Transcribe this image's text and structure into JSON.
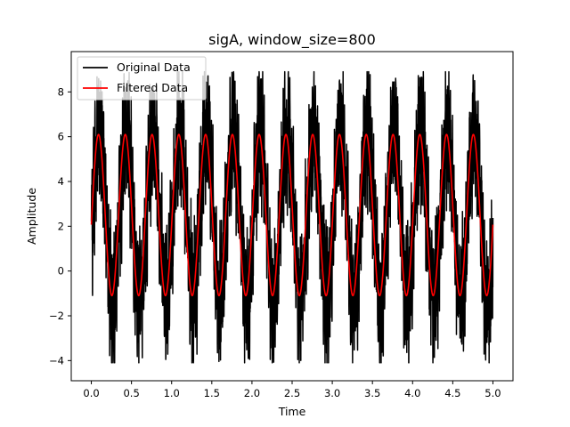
{
  "chart_data": {
    "type": "line",
    "title": "sigA, window_size=800",
    "xlabel": "Time",
    "ylabel": "Amplitude",
    "xlim": [
      -0.25,
      5.25
    ],
    "ylim": [
      -4.9,
      9.8
    ],
    "xticks": [
      0,
      0.5,
      1,
      1.5,
      2,
      2.5,
      3,
      3.5,
      4,
      4.5,
      5
    ],
    "xtick_labels": [
      "0.0",
      "0.5",
      "1.0",
      "1.5",
      "2.0",
      "2.5",
      "3.0",
      "3.5",
      "4.0",
      "4.5",
      "5.0"
    ],
    "yticks": [
      -4,
      -2,
      0,
      2,
      4,
      6,
      8
    ],
    "ytick_labels": [
      "−4",
      "−2",
      "0",
      "2",
      "4",
      "6",
      "8"
    ],
    "grid": false,
    "legend_position": "top-left",
    "series": [
      {
        "name": "Original Data",
        "color": "#000000",
        "description_values": {
          "x_range": [
            0,
            5
          ],
          "baseline": 2.5,
          "oscillation_frequency_hz": 3,
          "oscillation_amplitude": 3.7,
          "noise_band_max": 8.9,
          "noise_band_min": -4.1
        }
      },
      {
        "name": "Filtered Data",
        "color": "#ff0000",
        "description_values": {
          "x_range": [
            0,
            5
          ],
          "baseline": 2.5,
          "oscillation_frequency_hz": 3,
          "peak": 6.1,
          "trough": -1.1,
          "start_value": 2.0,
          "end_value": 0.5
        }
      }
    ]
  }
}
